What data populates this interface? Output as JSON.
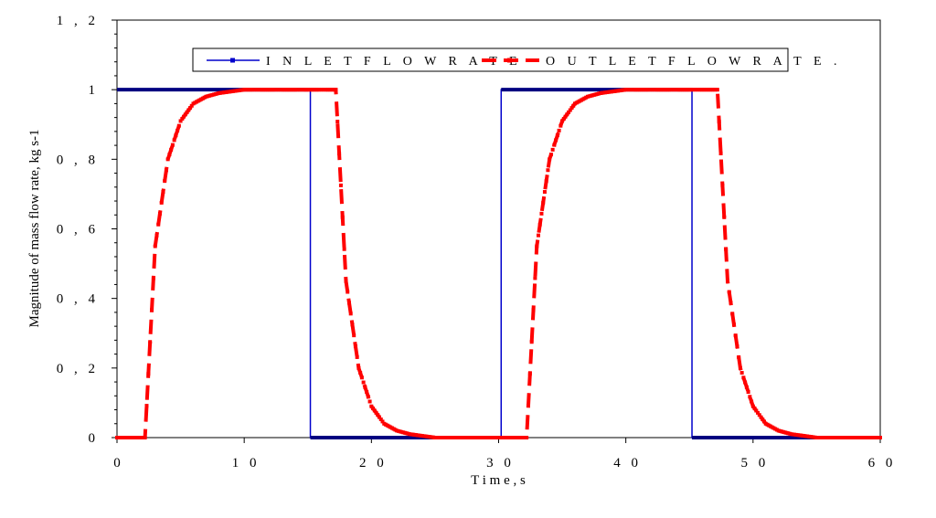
{
  "chart_data": {
    "type": "line",
    "xlabel": "T i m e ,  s",
    "ylabel": "Magnitude of mass flow rate, kg s-1",
    "xlim": [
      0,
      60
    ],
    "ylim": [
      0,
      1.2
    ],
    "x_ticks": [
      "0",
      "1 0",
      "2 0",
      "3 0",
      "4 0",
      "5 0",
      "6 0"
    ],
    "x_tick_values": [
      0,
      10,
      20,
      30,
      40,
      50,
      60
    ],
    "y_ticks": [
      "0",
      "0 , 2",
      "0 , 4",
      "0 , 6",
      "0 , 8",
      "1",
      "1 , 2"
    ],
    "y_tick_values": [
      0,
      0.2,
      0.4,
      0.6,
      0.8,
      1.0,
      1.2
    ],
    "grid": false,
    "legend_position": "top-center",
    "series": [
      {
        "name": "I N L E T  F L O W R A T E",
        "color": "#0000CC",
        "style": "solid",
        "x": [
          0,
          15.0,
          15.2,
          15.2,
          30.0,
          30.2,
          30.2,
          45.0,
          45.2,
          45.2,
          60
        ],
        "y": [
          1,
          1,
          1,
          0,
          0,
          0,
          1,
          1,
          1,
          0,
          0
        ]
      },
      {
        "name": "O U T L E T  F L O W R A T E .",
        "color": "#FF0000",
        "style": "dashed-markers",
        "x": [
          0,
          2.0,
          2.2,
          3,
          4,
          5,
          6,
          7,
          8,
          10,
          12,
          17.0,
          17.2,
          18,
          19,
          20,
          21,
          22,
          23,
          25,
          27,
          32.0,
          32.2,
          33,
          34,
          35,
          36,
          37,
          38,
          40,
          42,
          47.0,
          47.2,
          48,
          49,
          50,
          51,
          52,
          53,
          55,
          60
        ],
        "y": [
          0,
          0,
          0,
          0.55,
          0.8,
          0.91,
          0.96,
          0.98,
          0.99,
          1.0,
          1.0,
          1.0,
          1.0,
          0.45,
          0.2,
          0.09,
          0.04,
          0.02,
          0.01,
          0.0,
          0.0,
          0,
          0,
          0.55,
          0.8,
          0.91,
          0.96,
          0.98,
          0.99,
          1.0,
          1.0,
          1.0,
          1.0,
          0.45,
          0.2,
          0.09,
          0.04,
          0.02,
          0.01,
          0.0,
          0.0
        ]
      }
    ]
  }
}
